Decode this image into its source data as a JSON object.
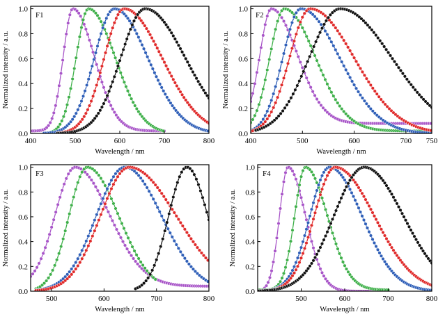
{
  "figure": {
    "background": "#ffffff"
  },
  "series_colors": [
    "#a855c8",
    "#3fb04a",
    "#2f5fb8",
    "#e02a2a",
    "#111111"
  ],
  "chart_data": [
    {
      "type": "line",
      "panel_label": "F1",
      "xlabel": "Wavelength / nm",
      "ylabel": "Normalized intensity / a.u.",
      "xlim": [
        400,
        800
      ],
      "ylim": [
        0,
        1.02
      ],
      "xticks": [
        400,
        500,
        600,
        700,
        800
      ],
      "yticks": [
        0.0,
        0.2,
        0.4,
        0.6,
        0.8,
        1.0
      ],
      "grid": false,
      "series": [
        {
          "color": "#a855c8",
          "x_range": [
            400,
            700
          ],
          "peak": 495,
          "sigma_left": 22,
          "sigma_right": 48,
          "baseline": 0.02
        },
        {
          "color": "#3fb04a",
          "x_range": [
            430,
            700
          ],
          "peak": 530,
          "sigma_left": 28,
          "sigma_right": 60,
          "baseline": 0.0
        },
        {
          "color": "#2f5fb8",
          "x_range": [
            430,
            800
          ],
          "peak": 588,
          "sigma_left": 45,
          "sigma_right": 75,
          "baseline": 0.0
        },
        {
          "color": "#e02a2a",
          "x_range": [
            460,
            800
          ],
          "peak": 610,
          "sigma_left": 45,
          "sigma_right": 85,
          "baseline": 0.0
        },
        {
          "color": "#111111",
          "x_range": [
            460,
            800
          ],
          "peak": 657,
          "sigma_left": 55,
          "sigma_right": 90,
          "baseline": 0.0
        }
      ]
    },
    {
      "type": "line",
      "panel_label": "F2",
      "xlabel": "Wavelength / nm",
      "ylabel": "Normalized intensity / a.u.",
      "xlim": [
        400,
        750
      ],
      "ylim": [
        0,
        1.02
      ],
      "xticks": [
        400,
        500,
        600,
        700,
        750
      ],
      "yticks": [
        0.0,
        0.2,
        0.4,
        0.6,
        0.8,
        1.0
      ],
      "grid": false,
      "series": [
        {
          "color": "#a855c8",
          "x_range": [
            400,
            750
          ],
          "peak": 440,
          "sigma_left": 22,
          "sigma_right": 50,
          "baseline": 0.08
        },
        {
          "color": "#3fb04a",
          "x_range": [
            400,
            750
          ],
          "peak": 465,
          "sigma_left": 28,
          "sigma_right": 60,
          "baseline": 0.02
        },
        {
          "color": "#2f5fb8",
          "x_range": [
            400,
            750
          ],
          "peak": 497,
          "sigma_left": 35,
          "sigma_right": 75,
          "baseline": 0.0
        },
        {
          "color": "#e02a2a",
          "x_range": [
            400,
            750
          ],
          "peak": 515,
          "sigma_left": 40,
          "sigma_right": 85,
          "baseline": 0.0
        },
        {
          "color": "#111111",
          "x_range": [
            410,
            750
          ],
          "peak": 573,
          "sigma_left": 60,
          "sigma_right": 100,
          "baseline": 0.0
        }
      ]
    },
    {
      "type": "line",
      "panel_label": "F3",
      "xlabel": "Wavelength / nm",
      "ylabel": "Normalized intensity / a.u.",
      "xlim": [
        460,
        800
      ],
      "ylim": [
        0,
        1.02
      ],
      "xticks": [
        500,
        600,
        700,
        800
      ],
      "yticks": [
        0.0,
        0.2,
        0.4,
        0.6,
        0.8,
        1.0
      ],
      "grid": false,
      "series": [
        {
          "color": "#a855c8",
          "x_range": [
            460,
            800
          ],
          "peak": 545,
          "sigma_left": 38,
          "sigma_right": 65,
          "baseline": 0.04
        },
        {
          "color": "#3fb04a",
          "x_range": [
            470,
            700
          ],
          "peak": 568,
          "sigma_left": 35,
          "sigma_right": 60,
          "baseline": 0.0
        },
        {
          "color": "#2f5fb8",
          "x_range": [
            470,
            800
          ],
          "peak": 640,
          "sigma_left": 55,
          "sigma_right": 70,
          "baseline": 0.0
        },
        {
          "color": "#e02a2a",
          "x_range": [
            470,
            800
          ],
          "peak": 648,
          "sigma_left": 55,
          "sigma_right": 90,
          "baseline": 0.0
        },
        {
          "color": "#111111",
          "x_range": [
            660,
            800
          ],
          "peak": 758,
          "sigma_left": 35,
          "sigma_right": 40,
          "baseline": 0.0
        }
      ]
    },
    {
      "type": "line",
      "panel_label": "F4",
      "xlabel": "Wavelength / nm",
      "ylabel": "Normalized intensity / a.u.",
      "xlim": [
        400,
        800
      ],
      "ylim": [
        0,
        1.02
      ],
      "xticks": [
        500,
        600,
        700,
        800
      ],
      "yticks": [
        0.0,
        0.2,
        0.4,
        0.6,
        0.8,
        1.0
      ],
      "grid": false,
      "series": [
        {
          "color": "#a855c8",
          "x_range": [
            400,
            700
          ],
          "peak": 470,
          "sigma_left": 20,
          "sigma_right": 40,
          "baseline": 0.0
        },
        {
          "color": "#3fb04a",
          "x_range": [
            400,
            700
          ],
          "peak": 510,
          "sigma_left": 25,
          "sigma_right": 50,
          "baseline": 0.01
        },
        {
          "color": "#2f5fb8",
          "x_range": [
            400,
            800
          ],
          "peak": 565,
          "sigma_left": 45,
          "sigma_right": 75,
          "baseline": 0.0
        },
        {
          "color": "#e02a2a",
          "x_range": [
            400,
            800
          ],
          "peak": 578,
          "sigma_left": 48,
          "sigma_right": 90,
          "baseline": 0.0
        },
        {
          "color": "#111111",
          "x_range": [
            400,
            800
          ],
          "peak": 645,
          "sigma_left": 70,
          "sigma_right": 90,
          "baseline": 0.0
        }
      ]
    }
  ]
}
